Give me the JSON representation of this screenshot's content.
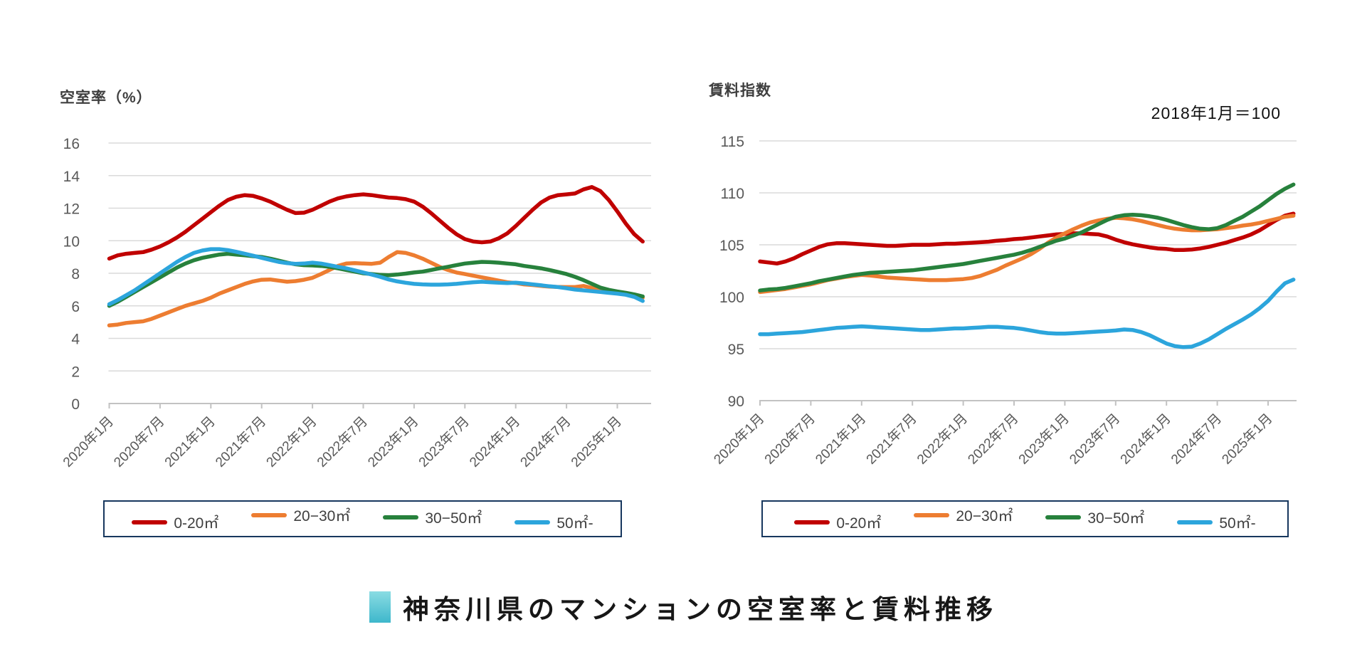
{
  "left_chart": {
    "title": "空室率（%）"
  },
  "right_chart": {
    "title": "賃料指数",
    "note": "2018年1月＝100"
  },
  "footer": {
    "title": "神奈川県のマンションの空室率と賃料推移",
    "marker_color_top": "#8adce3",
    "marker_color_bottom": "#3eb7cb"
  },
  "colors": {
    "red": "#c00000",
    "orange": "#ed7d31",
    "green": "#27813c",
    "blue": "#2ca5dc",
    "grid": "#dadada",
    "axis": "#c2c2c2",
    "tick_text": "#595959",
    "legend_border": "#17375e"
  },
  "chart_data": [
    {
      "type": "line",
      "title": "空室率（%）",
      "ylabel": "空室率（%）",
      "ylim": [
        0,
        16
      ],
      "yticks": [
        0,
        2,
        4,
        6,
        8,
        10,
        12,
        14,
        16
      ],
      "grid": true,
      "legend_position": "bottom",
      "x_freq": "monthly",
      "x_start_label": "2020年1月",
      "x_end_label": "2025年4月",
      "n_points": 64,
      "tick_every": 6,
      "x_tick_labels": [
        "2020年1月",
        "2020年7月",
        "2021年1月",
        "2021年7月",
        "2022年1月",
        "2022年7月",
        "2023年1月",
        "2023年7月",
        "2024年1月",
        "2024年7月",
        "2025年1月"
      ],
      "series": [
        {
          "name": "0-20㎡",
          "color": "#c00000",
          "values": [
            8.9,
            9.1,
            9.2,
            9.25,
            9.3,
            9.45,
            9.65,
            9.9,
            10.2,
            10.55,
            10.95,
            11.35,
            11.75,
            12.15,
            12.5,
            12.7,
            12.8,
            12.75,
            12.6,
            12.4,
            12.15,
            11.9,
            11.7,
            11.72,
            11.9,
            12.15,
            12.4,
            12.6,
            12.72,
            12.8,
            12.85,
            12.8,
            12.72,
            12.65,
            12.62,
            12.55,
            12.4,
            12.1,
            11.7,
            11.25,
            10.8,
            10.4,
            10.1,
            9.95,
            9.9,
            9.95,
            10.15,
            10.45,
            10.9,
            11.4,
            11.9,
            12.35,
            12.65,
            12.8,
            12.85,
            12.9,
            13.15,
            13.3,
            13.05,
            12.5,
            11.8,
            11.05,
            10.4,
            9.95
          ]
        },
        {
          "name": "20−30㎡",
          "color": "#ed7d31",
          "values": [
            4.8,
            4.85,
            4.95,
            5.0,
            5.05,
            5.2,
            5.4,
            5.6,
            5.8,
            6.0,
            6.15,
            6.3,
            6.5,
            6.75,
            6.95,
            7.15,
            7.35,
            7.5,
            7.6,
            7.62,
            7.55,
            7.48,
            7.52,
            7.6,
            7.72,
            7.95,
            8.2,
            8.45,
            8.6,
            8.62,
            8.6,
            8.58,
            8.65,
            9.0,
            9.3,
            9.25,
            9.1,
            8.9,
            8.65,
            8.4,
            8.2,
            8.05,
            7.95,
            7.85,
            7.75,
            7.65,
            7.55,
            7.45,
            7.4,
            7.32,
            7.28,
            7.22,
            7.18,
            7.16,
            7.15,
            7.15,
            7.22,
            7.1,
            7.0,
            6.92,
            6.85,
            6.75,
            6.62,
            6.5
          ]
        },
        {
          "name": "30−50㎡",
          "color": "#27813c",
          "values": [
            6.0,
            6.25,
            6.55,
            6.85,
            7.15,
            7.45,
            7.75,
            8.05,
            8.35,
            8.6,
            8.8,
            8.95,
            9.05,
            9.15,
            9.2,
            9.15,
            9.1,
            9.05,
            9.0,
            8.9,
            8.78,
            8.65,
            8.55,
            8.5,
            8.48,
            8.45,
            8.4,
            8.3,
            8.2,
            8.1,
            8.0,
            7.95,
            7.9,
            7.88,
            7.92,
            7.98,
            8.05,
            8.1,
            8.2,
            8.3,
            8.4,
            8.5,
            8.6,
            8.65,
            8.7,
            8.68,
            8.65,
            8.6,
            8.55,
            8.45,
            8.38,
            8.3,
            8.2,
            8.08,
            7.95,
            7.78,
            7.58,
            7.35,
            7.12,
            6.98,
            6.88,
            6.8,
            6.7,
            6.58
          ]
        },
        {
          "name": "50㎡-",
          "color": "#2ca5dc",
          "values": [
            6.1,
            6.35,
            6.65,
            6.95,
            7.3,
            7.65,
            8.0,
            8.35,
            8.7,
            9.0,
            9.25,
            9.4,
            9.48,
            9.48,
            9.42,
            9.32,
            9.2,
            9.08,
            8.95,
            8.82,
            8.7,
            8.62,
            8.58,
            8.6,
            8.65,
            8.6,
            8.5,
            8.4,
            8.3,
            8.18,
            8.05,
            7.92,
            7.78,
            7.62,
            7.5,
            7.42,
            7.35,
            7.32,
            7.3,
            7.3,
            7.32,
            7.35,
            7.4,
            7.45,
            7.48,
            7.45,
            7.42,
            7.4,
            7.42,
            7.38,
            7.32,
            7.26,
            7.2,
            7.15,
            7.08,
            7.0,
            6.95,
            6.9,
            6.85,
            6.8,
            6.75,
            6.68,
            6.55,
            6.3
          ]
        }
      ]
    },
    {
      "type": "line",
      "title": "賃料指数",
      "subtitle": "2018年1月＝100",
      "ylim": [
        90,
        115
      ],
      "yticks": [
        90,
        95,
        100,
        105,
        110,
        115
      ],
      "grid": true,
      "legend_position": "bottom",
      "x_freq": "monthly",
      "x_start_label": "2020年1月",
      "x_end_label": "2025年4月",
      "n_points": 64,
      "tick_every": 6,
      "x_tick_labels": [
        "2020年1月",
        "2020年7月",
        "2021年1月",
        "2021年7月",
        "2022年1月",
        "2022年7月",
        "2023年1月",
        "2023年7月",
        "2024年1月",
        "2024年7月",
        "2025年1月"
      ],
      "series": [
        {
          "name": "0-20㎡",
          "color": "#c00000",
          "values": [
            103.4,
            103.3,
            103.2,
            103.4,
            103.7,
            104.1,
            104.45,
            104.8,
            105.05,
            105.15,
            105.15,
            105.1,
            105.05,
            105.0,
            104.95,
            104.9,
            104.9,
            104.95,
            105.0,
            105.0,
            105.0,
            105.05,
            105.1,
            105.1,
            105.15,
            105.2,
            105.25,
            105.3,
            105.4,
            105.45,
            105.55,
            105.6,
            105.7,
            105.8,
            105.9,
            106.0,
            106.05,
            106.1,
            106.1,
            106.05,
            106.0,
            105.8,
            105.5,
            105.25,
            105.05,
            104.9,
            104.75,
            104.65,
            104.6,
            104.5,
            104.5,
            104.55,
            104.65,
            104.8,
            105.0,
            105.2,
            105.45,
            105.7,
            106.0,
            106.4,
            106.9,
            107.4,
            107.8,
            108.0
          ]
        },
        {
          "name": "20−30㎡",
          "color": "#ed7d31",
          "values": [
            100.45,
            100.55,
            100.65,
            100.75,
            100.9,
            101.05,
            101.2,
            101.4,
            101.6,
            101.75,
            101.9,
            102.0,
            102.1,
            102.05,
            101.95,
            101.85,
            101.8,
            101.75,
            101.7,
            101.65,
            101.6,
            101.6,
            101.6,
            101.65,
            101.7,
            101.8,
            102.0,
            102.3,
            102.6,
            103.0,
            103.35,
            103.7,
            104.1,
            104.6,
            105.2,
            105.7,
            106.1,
            106.5,
            106.85,
            107.15,
            107.35,
            107.5,
            107.6,
            107.55,
            107.45,
            107.3,
            107.1,
            106.9,
            106.7,
            106.55,
            106.45,
            106.4,
            106.4,
            106.45,
            106.5,
            106.6,
            106.7,
            106.85,
            106.95,
            107.1,
            107.3,
            107.5,
            107.7,
            107.8
          ]
        },
        {
          "name": "30−50㎡",
          "color": "#27813c",
          "values": [
            100.6,
            100.7,
            100.75,
            100.85,
            101.0,
            101.15,
            101.3,
            101.5,
            101.65,
            101.8,
            101.95,
            102.1,
            102.2,
            102.3,
            102.35,
            102.4,
            102.45,
            102.5,
            102.55,
            102.65,
            102.75,
            102.85,
            102.95,
            103.05,
            103.15,
            103.3,
            103.45,
            103.6,
            103.75,
            103.9,
            104.05,
            104.25,
            104.5,
            104.8,
            105.1,
            105.4,
            105.6,
            105.9,
            106.2,
            106.6,
            107.0,
            107.4,
            107.7,
            107.85,
            107.9,
            107.85,
            107.75,
            107.6,
            107.4,
            107.15,
            106.9,
            106.7,
            106.55,
            106.5,
            106.6,
            106.9,
            107.3,
            107.7,
            108.2,
            108.7,
            109.3,
            109.9,
            110.4,
            110.8
          ]
        },
        {
          "name": "50㎡-",
          "color": "#2ca5dc",
          "values": [
            96.4,
            96.4,
            96.45,
            96.5,
            96.55,
            96.6,
            96.7,
            96.8,
            96.9,
            97.0,
            97.05,
            97.1,
            97.15,
            97.1,
            97.05,
            97.0,
            96.95,
            96.9,
            96.85,
            96.8,
            96.8,
            96.85,
            96.9,
            96.95,
            96.95,
            97.0,
            97.05,
            97.1,
            97.1,
            97.05,
            97.0,
            96.9,
            96.75,
            96.6,
            96.5,
            96.45,
            96.45,
            96.5,
            96.55,
            96.6,
            96.65,
            96.7,
            96.75,
            96.85,
            96.8,
            96.6,
            96.3,
            95.9,
            95.5,
            95.25,
            95.15,
            95.2,
            95.5,
            95.9,
            96.4,
            96.9,
            97.35,
            97.8,
            98.3,
            98.9,
            99.6,
            100.5,
            101.3,
            101.65
          ]
        }
      ]
    }
  ]
}
